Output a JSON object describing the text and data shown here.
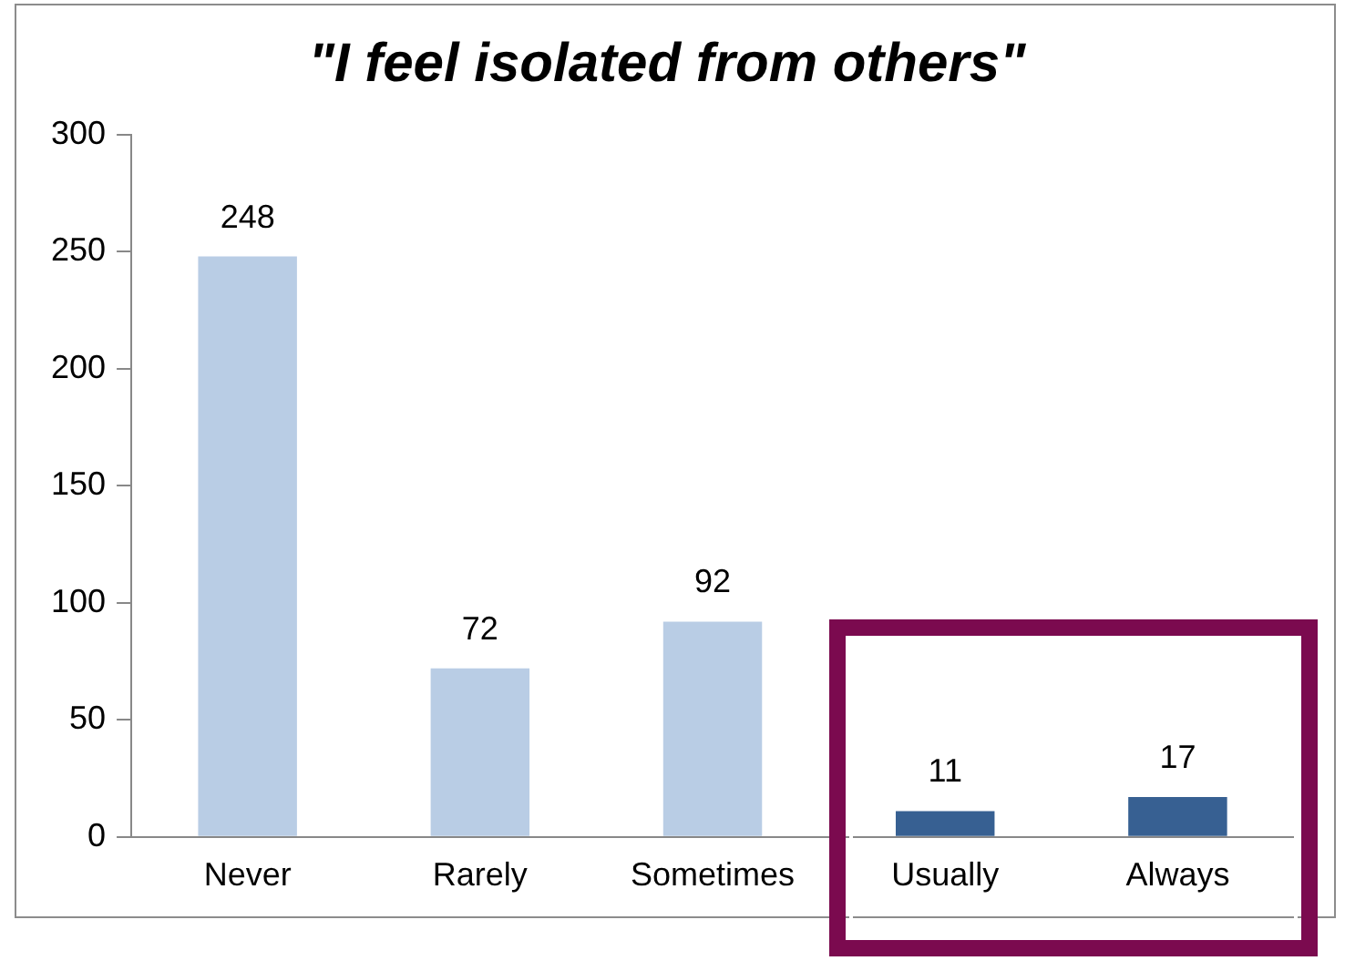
{
  "chart_data": {
    "type": "bar",
    "title": "\"I feel isolated from others\"",
    "categories": [
      "Never",
      "Rarely",
      "Sometimes",
      "Usually",
      "Always"
    ],
    "values": [
      248,
      72,
      92,
      11,
      17
    ],
    "colors": [
      "#b9cde5",
      "#b9cde5",
      "#b9cde5",
      "#376092",
      "#376092"
    ],
    "ylim": [
      0,
      300
    ],
    "yticks": [
      0,
      50,
      100,
      150,
      200,
      250,
      300
    ],
    "grid": false,
    "legend": false,
    "data_labels": true
  }
}
